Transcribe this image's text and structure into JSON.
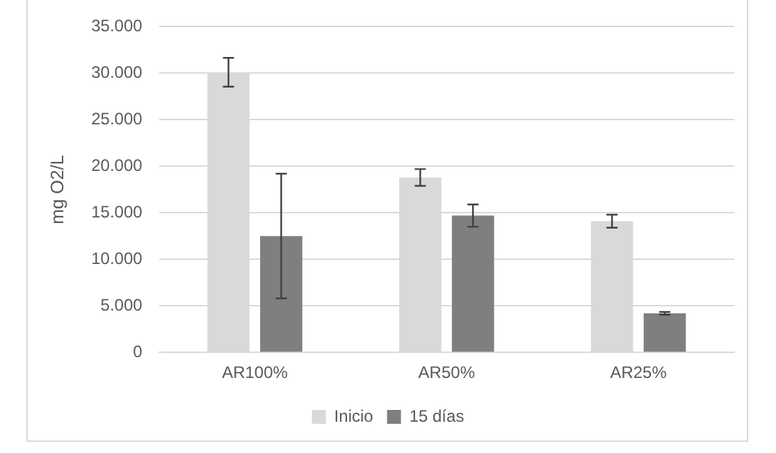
{
  "chart_data": {
    "type": "bar",
    "ylabel": "mg O2/L",
    "categories": [
      "AR100%",
      "AR50%",
      "AR25%"
    ],
    "series": [
      {
        "name": "Inicio",
        "color": "#d9d9d9",
        "values": [
          30100,
          18800,
          14100
        ],
        "errors": [
          1550,
          900,
          700
        ]
      },
      {
        "name": "15 días",
        "color": "#7f7f7f",
        "values": [
          12500,
          14700,
          4200
        ],
        "errors": [
          6700,
          1200,
          150
        ]
      }
    ],
    "ylim": [
      0,
      35000
    ],
    "yticks": [
      {
        "value": 0,
        "label": "0"
      },
      {
        "value": 5000,
        "label": "5.000"
      },
      {
        "value": 10000,
        "label": "10.000"
      },
      {
        "value": 15000,
        "label": "15.000"
      },
      {
        "value": 20000,
        "label": "20.000"
      },
      {
        "value": 25000,
        "label": "25.000"
      },
      {
        "value": 30000,
        "label": "30.000"
      },
      {
        "value": 35000,
        "label": "35.000"
      }
    ],
    "grid": "y",
    "legend": "bottom"
  }
}
